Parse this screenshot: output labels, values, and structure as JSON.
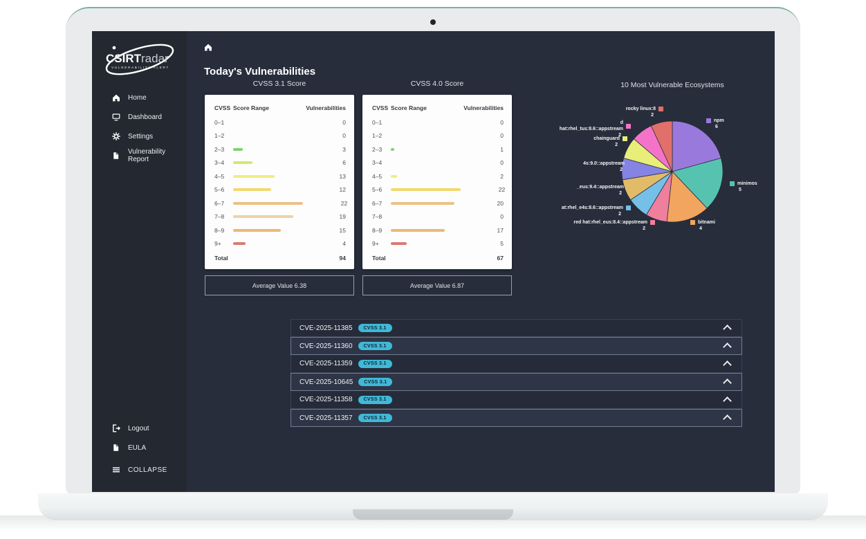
{
  "brand": {
    "name_bold": "CSIRT",
    "name_light": "radar",
    "tagline": "VULNERABILITY ALERT"
  },
  "sidebar": {
    "items": [
      {
        "label": "Home",
        "icon": "home-icon"
      },
      {
        "label": "Dashboard",
        "icon": "dashboard-icon"
      },
      {
        "label": "Settings",
        "icon": "settings-icon"
      },
      {
        "label": "Vulnerability Report",
        "icon": "report-icon"
      }
    ],
    "footer_items": [
      {
        "label": "Logout",
        "icon": "logout-icon"
      },
      {
        "label": "EULA",
        "icon": "eula-icon"
      },
      {
        "label": "COLLAPSE",
        "icon": "collapse-icon"
      }
    ]
  },
  "header": {
    "page_title": "Today's Vulnerabilities"
  },
  "chart_data": [
    {
      "type": "table",
      "title": "CVSS 3.1 Score",
      "columns": [
        "CVSS",
        "Score Range",
        "Vulnerabilities"
      ],
      "categories": [
        "0–1",
        "1–2",
        "2–3",
        "3–4",
        "4–5",
        "5–6",
        "6–7",
        "7–8",
        "8–9",
        "9+"
      ],
      "values": [
        0,
        0,
        3,
        6,
        13,
        12,
        22,
        19,
        15,
        4
      ],
      "bar_colors": [
        "#7fd36f",
        "#7fd36f",
        "#7fd36f",
        "#d7e76f",
        "#f1ec86",
        "#f3d96e",
        "#e9c288",
        "#eed3a4",
        "#ecb878",
        "#dc7a73"
      ],
      "total_label": "Total",
      "total": 94
    },
    {
      "type": "table",
      "title": "CVSS 4.0 Score",
      "columns": [
        "CVSS",
        "Score Range",
        "Vulnerabilities"
      ],
      "categories": [
        "0–1",
        "1–2",
        "2–3",
        "3–4",
        "4–5",
        "5–6",
        "6–7",
        "7–8",
        "8–9",
        "9+"
      ],
      "values": [
        0,
        0,
        1,
        0,
        2,
        22,
        20,
        0,
        17,
        5
      ],
      "bar_colors": [
        "#7fd36f",
        "#7fd36f",
        "#7fd36f",
        "#d7e76f",
        "#f1ec86",
        "#f3d96e",
        "#e9c288",
        "#eed3a4",
        "#ecb878",
        "#dc7a73"
      ],
      "total_label": "Total",
      "total": 67
    },
    {
      "type": "pie",
      "title": "10 Most Vulnerable Ecosystems",
      "labels": [
        "npm",
        "minimos",
        "bitnami",
        "red hat:rhel_eus:8.4::appstream",
        "at:rhel_e4s:8.6::appstream",
        "_eus:9.4::appstream",
        "4s:9.0::appstream",
        "chainguard",
        "d hat:rhel_tus:8.6::appstream",
        "rocky linux:8"
      ],
      "values": [
        6,
        5,
        4,
        2,
        2,
        2,
        2,
        2,
        2,
        2
      ],
      "colors": [
        "#9a79dd",
        "#56c3b0",
        "#f2a55f",
        "#ee7f9d",
        "#74c0e8",
        "#e2bb69",
        "#8583e4",
        "#e9ee78",
        "#f473c8",
        "#e1706a"
      ],
      "legend_position": "around"
    }
  ],
  "averages": [
    {
      "label": "Average Value 6.38"
    },
    {
      "label": "Average Value 6.87"
    }
  ],
  "cve_list": [
    {
      "id": "CVE-2025-11385",
      "badge": "CVSS 3.1"
    },
    {
      "id": "CVE-2025-11360",
      "badge": "CVSS 3.1"
    },
    {
      "id": "CVE-2025-11359",
      "badge": "CVSS 3.1"
    },
    {
      "id": "CVE-2025-10645",
      "badge": "CVSS 3.1"
    },
    {
      "id": "CVE-2025-11358",
      "badge": "CVSS 3.1"
    },
    {
      "id": "CVE-2025-11357",
      "badge": "CVSS 3.1"
    }
  ]
}
